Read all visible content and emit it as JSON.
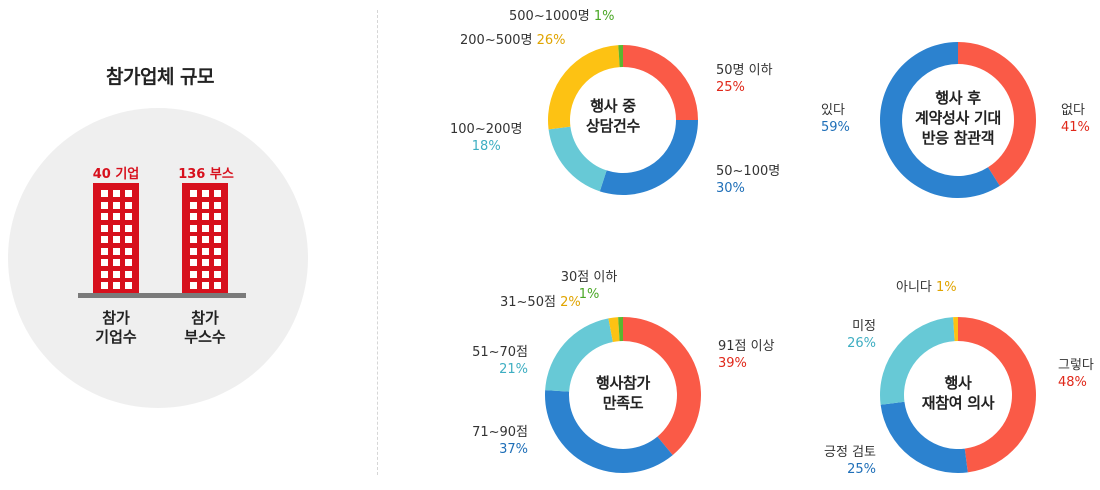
{
  "left_panel": {
    "title": "참가업체 규모",
    "companies_value": "40 기업",
    "booths_value": "136 부스",
    "companies_caption": [
      "참가",
      "기업수"
    ],
    "booths_caption": [
      "참가",
      "부스수"
    ],
    "accent_color": "#d7101d"
  },
  "chart_data": [
    {
      "type": "pie",
      "title": [
        "행사 중",
        "상담건수"
      ],
      "slices": [
        {
          "label": "50명 이하",
          "value": 25,
          "pct_text": "25%",
          "color": "#fa5a47",
          "text_color": "#e0281a"
        },
        {
          "label": "50~100명",
          "value": 30,
          "pct_text": "30%",
          "color": "#2c82cf",
          "text_color": "#1f6fb8"
        },
        {
          "label": "100~200명",
          "value": 18,
          "pct_text": "18%",
          "color": "#67c9d6",
          "text_color": "#3eaec2"
        },
        {
          "label": "200~500명",
          "value": 26,
          "pct_text": "26%",
          "color": "#fdc213",
          "text_color": "#e0a400"
        },
        {
          "label": "500~1000명",
          "value": 1,
          "pct_text": "1%",
          "color": "#5ab730",
          "text_color": "#4aa725"
        }
      ]
    },
    {
      "type": "pie",
      "title": [
        "행사 후",
        "계약성사 기대",
        "반응 참관객"
      ],
      "slices": [
        {
          "label": "없다",
          "value": 41,
          "pct_text": "41%",
          "color": "#fa5a47",
          "text_color": "#e0281a"
        },
        {
          "label": "있다",
          "value": 59,
          "pct_text": "59%",
          "color": "#2c82cf",
          "text_color": "#1f6fb8"
        }
      ]
    },
    {
      "type": "pie",
      "title": [
        "행사참가",
        "만족도"
      ],
      "slices": [
        {
          "label": "91점 이상",
          "value": 39,
          "pct_text": "39%",
          "color": "#fa5a47",
          "text_color": "#e0281a"
        },
        {
          "label": "71~90점",
          "value": 37,
          "pct_text": "37%",
          "color": "#2c82cf",
          "text_color": "#1f6fb8"
        },
        {
          "label": "51~70점",
          "value": 21,
          "pct_text": "21%",
          "color": "#67c9d6",
          "text_color": "#3eaec2"
        },
        {
          "label": "31~50점",
          "value": 2,
          "pct_text": "2%",
          "color": "#fdc213",
          "text_color": "#e0a400"
        },
        {
          "label": "30점 이하",
          "value": 1,
          "pct_text": "1%",
          "color": "#5ab730",
          "text_color": "#4aa725"
        }
      ]
    },
    {
      "type": "pie",
      "title": [
        "행사",
        "재참여 의사"
      ],
      "slices": [
        {
          "label": "그렇다",
          "value": 48,
          "pct_text": "48%",
          "color": "#fa5a47",
          "text_color": "#e0281a"
        },
        {
          "label": "긍정 검토",
          "value": 25,
          "pct_text": "25%",
          "color": "#2c82cf",
          "text_color": "#1f6fb8"
        },
        {
          "label": "미정",
          "value": 26,
          "pct_text": "26%",
          "color": "#67c9d6",
          "text_color": "#3eaec2"
        },
        {
          "label": "아니다",
          "value": 1,
          "pct_text": "1%",
          "color": "#fdc213",
          "text_color": "#e0a400"
        }
      ]
    }
  ]
}
